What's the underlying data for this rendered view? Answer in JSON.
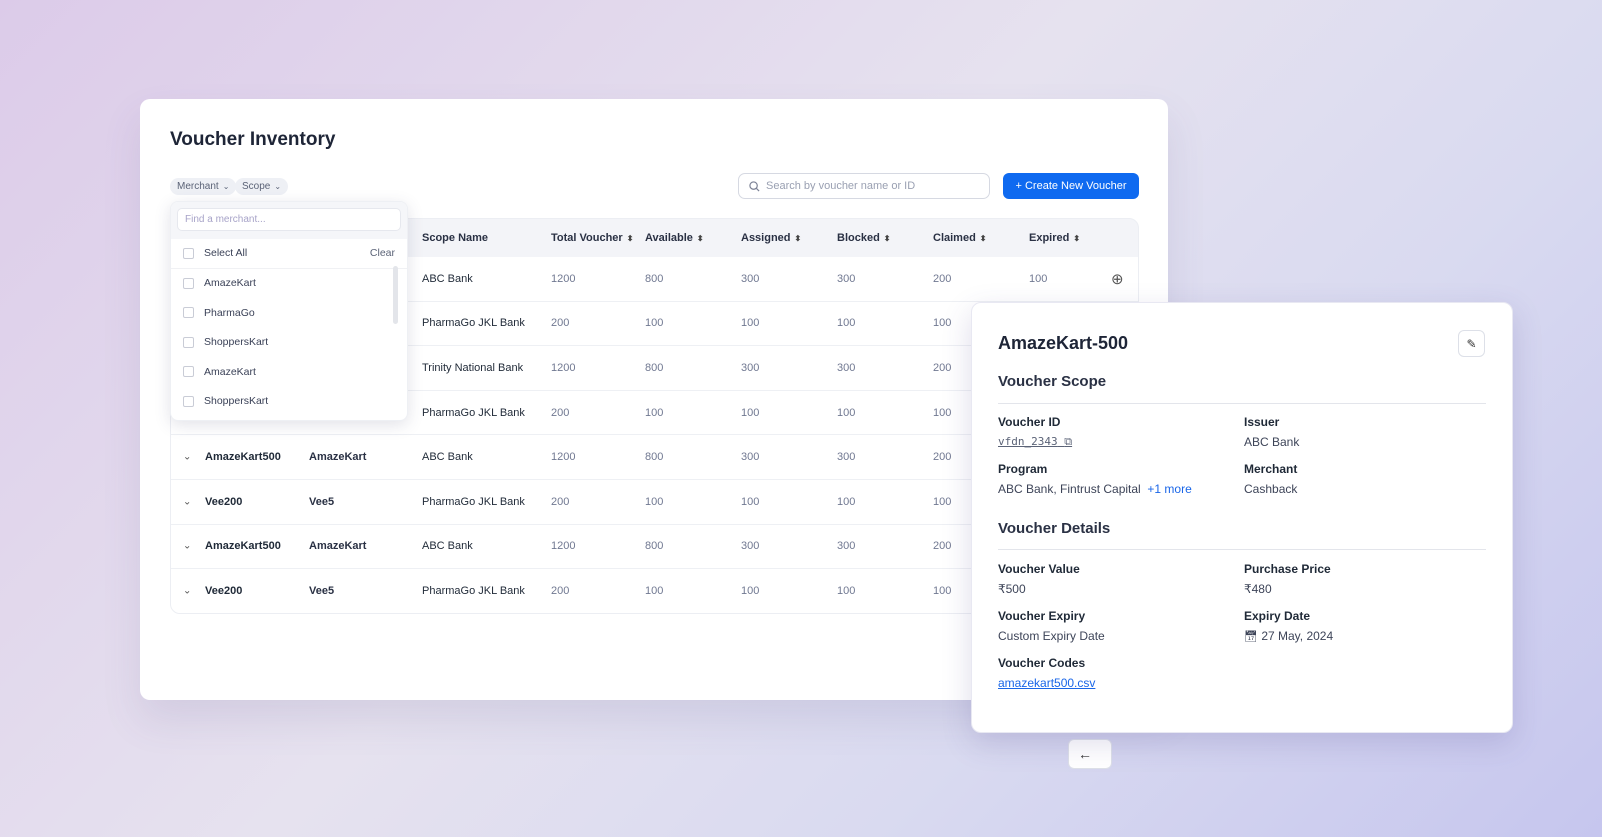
{
  "page": {
    "title": "Voucher Inventory"
  },
  "filters": {
    "merchant": "Merchant",
    "scope": "Scope"
  },
  "search": {
    "placeholder": "Search by voucher name or ID"
  },
  "create_button": "+ Create New Voucher",
  "table": {
    "headers": [
      "Scope Name",
      "Total Voucher",
      "Available",
      "Assigned",
      "Blocked",
      "Claimed",
      "Expired"
    ],
    "rows": [
      {
        "name": "",
        "merchant": "",
        "scope": "ABC Bank",
        "total": "1200",
        "available": "800",
        "assigned": "300",
        "blocked": "300",
        "claimed": "200",
        "expired": "100"
      },
      {
        "name": "",
        "merchant": "",
        "scope": "PharmaGo JKL Bank",
        "total": "200",
        "available": "100",
        "assigned": "100",
        "blocked": "100",
        "claimed": "100",
        "expired": ""
      },
      {
        "name": "",
        "merchant": "",
        "scope": "Trinity National Bank",
        "total": "1200",
        "available": "800",
        "assigned": "300",
        "blocked": "300",
        "claimed": "200",
        "expired": ""
      },
      {
        "name": "",
        "merchant": "",
        "scope": "PharmaGo JKL Bank",
        "total": "200",
        "available": "100",
        "assigned": "100",
        "blocked": "100",
        "claimed": "100",
        "expired": ""
      },
      {
        "name": "AmazeKart500",
        "merchant": "AmazeKart",
        "scope": "ABC Bank",
        "total": "1200",
        "available": "800",
        "assigned": "300",
        "blocked": "300",
        "claimed": "200",
        "expired": ""
      },
      {
        "name": "Vee200",
        "merchant": "Vee5",
        "scope": "PharmaGo JKL Bank",
        "total": "200",
        "available": "100",
        "assigned": "100",
        "blocked": "100",
        "claimed": "100",
        "expired": ""
      },
      {
        "name": "AmazeKart500",
        "merchant": "AmazeKart",
        "scope": "ABC Bank",
        "total": "1200",
        "available": "800",
        "assigned": "300",
        "blocked": "300",
        "claimed": "200",
        "expired": ""
      },
      {
        "name": "Vee200",
        "merchant": "Vee5",
        "scope": "PharmaGo JKL Bank",
        "total": "200",
        "available": "100",
        "assigned": "100",
        "blocked": "100",
        "claimed": "100",
        "expired": ""
      }
    ]
  },
  "dropdown": {
    "placeholder": "Find a merchant...",
    "select_all": "Select All",
    "clear": "Clear",
    "items": [
      "AmazeKart",
      "PharmaGo",
      "ShoppersKart",
      "AmazeKart",
      "ShoppersKart"
    ]
  },
  "details": {
    "title": "AmazeKart-500",
    "scope_heading": "Voucher Scope",
    "voucher_id_label": "Voucher ID",
    "voucher_id": "vfdn_2343",
    "issuer_label": "Issuer",
    "issuer": "ABC Bank",
    "program_label": "Program",
    "program": "ABC Bank, Fintrust Capital",
    "program_more": "+1 more",
    "merchant_label": "Merchant",
    "merchant": "Cashback",
    "details_heading": "Voucher Details",
    "value_label": "Voucher Value",
    "value": "₹500",
    "price_label": "Purchase Price",
    "price": "₹480",
    "expiry_label": "Voucher Expiry",
    "expiry": "Custom Expiry Date",
    "expiry_date_label": "Expiry Date",
    "expiry_date": "27 May, 2024",
    "codes_label": "Voucher Codes",
    "codes_file": "amazekart500.csv"
  },
  "colors": {
    "accent": "#0f6af0",
    "link": "#1a66e8"
  }
}
